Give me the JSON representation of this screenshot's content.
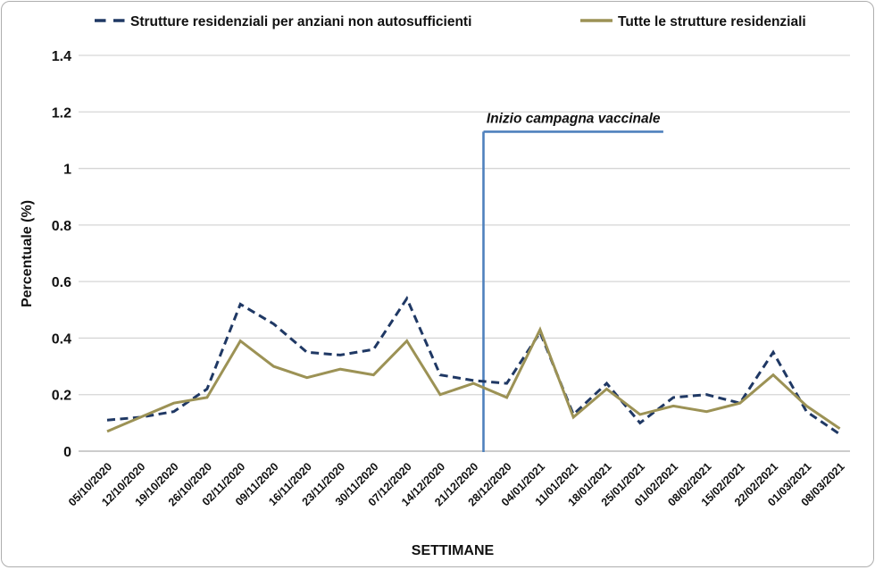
{
  "chart_data": {
    "type": "line",
    "title": "",
    "xlabel": "SETTIMANE",
    "ylabel": "Percentuale (%)",
    "ylim": [
      0,
      1.4
    ],
    "ytick_labels": [
      "0",
      "0.2",
      "0.4",
      "0.6",
      "0.8",
      "1",
      "1.2",
      "1.4"
    ],
    "ytick_values": [
      0,
      0.2,
      0.4,
      0.6,
      0.8,
      1,
      1.2,
      1.4
    ],
    "grid": "horizontal",
    "legend_position": "top",
    "categories": [
      "05/10/2020",
      "12/10/2020",
      "19/10/2020",
      "26/10/2020",
      "02/11/2020",
      "09/11/2020",
      "16/11/2020",
      "23/11/2020",
      "30/11/2020",
      "07/12/2020",
      "14/12/2020",
      "21/12/2020",
      "28/12/2020",
      "04/01/2021",
      "11/01/2021",
      "18/01/2021",
      "25/01/2021",
      "01/02/2021",
      "08/02/2021",
      "15/02/2021",
      "22/02/2021",
      "01/03/2021",
      "08/03/2021"
    ],
    "series": [
      {
        "name": "Strutture residenziali per anziani non autosufficienti",
        "style": "dashed",
        "color": "#1f3864",
        "values": [
          0.11,
          0.12,
          0.14,
          0.22,
          0.52,
          0.45,
          0.35,
          0.34,
          0.36,
          0.54,
          0.27,
          0.25,
          0.24,
          0.42,
          0.13,
          0.24,
          0.1,
          0.19,
          0.2,
          0.17,
          0.35,
          0.14,
          0.06
        ]
      },
      {
        "name": "Tutte le strutture residenziali",
        "style": "solid",
        "color": "#9c9255",
        "values": [
          0.07,
          0.12,
          0.17,
          0.19,
          0.39,
          0.3,
          0.26,
          0.29,
          0.27,
          0.39,
          0.2,
          0.24,
          0.19,
          0.43,
          0.12,
          0.22,
          0.13,
          0.16,
          0.14,
          0.17,
          0.27,
          0.16,
          0.08
        ]
      }
    ],
    "annotation": {
      "text": "Inizio campagna vaccinale",
      "color": "#4f81bd",
      "between_categories": [
        "21/12/2020",
        "28/12/2020"
      ],
      "vline_x_index": 11.3,
      "vline_top_value": 1.13,
      "hline_end_index": 16.7
    }
  }
}
